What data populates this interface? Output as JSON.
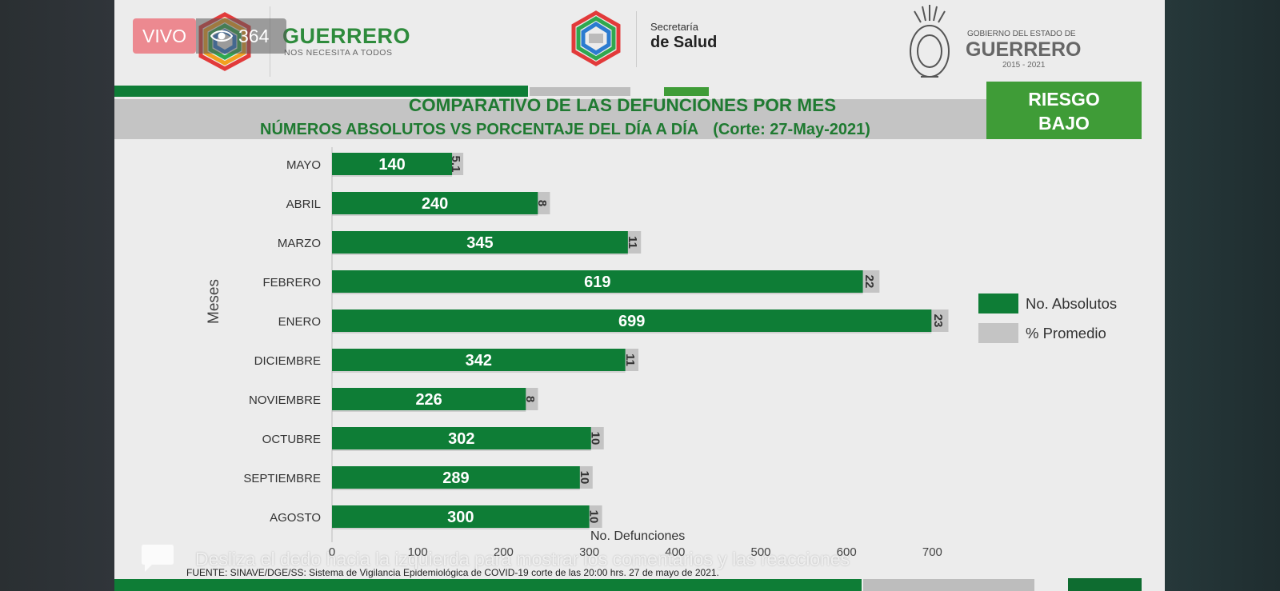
{
  "live": {
    "badge": "VIVO",
    "viewers": "364"
  },
  "logos": {
    "guerrero_word": "GUERRERO",
    "guerrero_tagline": "NOS NECESITA A TODOS",
    "salud_small": "Secretaría",
    "salud_big": "de Salud",
    "gobierno_small": "GOBIERNO DEL ESTADO DE",
    "gobierno_big": "GUERRERO",
    "gobierno_years": "2015 - 2021"
  },
  "risk": {
    "line1": "RIESGO",
    "line2": "BAJO"
  },
  "chart_data": {
    "type": "bar",
    "orientation": "horizontal",
    "title": "COMPARATIVO DE LAS DEFUNCIONES POR MES",
    "subtitle": "NÚMEROS ABSOLUTOS VS PORCENTAJE DEL DÍA A DÍA",
    "cutoff": "(Corte: 27-May-2021)",
    "ylabel": "Meses",
    "xlabel": "No. Defunciones",
    "xlim": [
      0,
      700
    ],
    "xticks": [
      "0",
      "100",
      "200",
      "300",
      "400",
      "500",
      "600",
      "700"
    ],
    "categories": [
      "MAYO",
      "ABRIL",
      "MARZO",
      "FEBRERO",
      "ENERO",
      "DICIEMBRE",
      "NOVIEMBRE",
      "OCTUBRE",
      "SEPTIEMBRE",
      "AGOSTO"
    ],
    "series": [
      {
        "name": "No. Absolutos",
        "color": "#0e7d36",
        "values": [
          140,
          240,
          345,
          619,
          699,
          342,
          226,
          302,
          289,
          300
        ]
      },
      {
        "name": "% Promedio",
        "color": "#c4c4c4",
        "values": [
          5.1,
          8,
          11,
          22,
          23,
          11,
          8,
          10,
          10,
          10
        ],
        "labels": [
          "5.1",
          "8",
          "11",
          "22",
          "23",
          "11",
          "8",
          "10",
          "10",
          "10"
        ]
      }
    ],
    "legend": "right"
  },
  "footer": {
    "source": "FUENTE: SINAVE/DGE/SS: Sistema de Vigilancia Epidemiológica de COVID-19 corte de las 20:00 hrs. 27 de mayo  de 2021.",
    "hint": "Desliza el dedo hacia la izquierda para mostrar los comentarios y las reacciones"
  }
}
